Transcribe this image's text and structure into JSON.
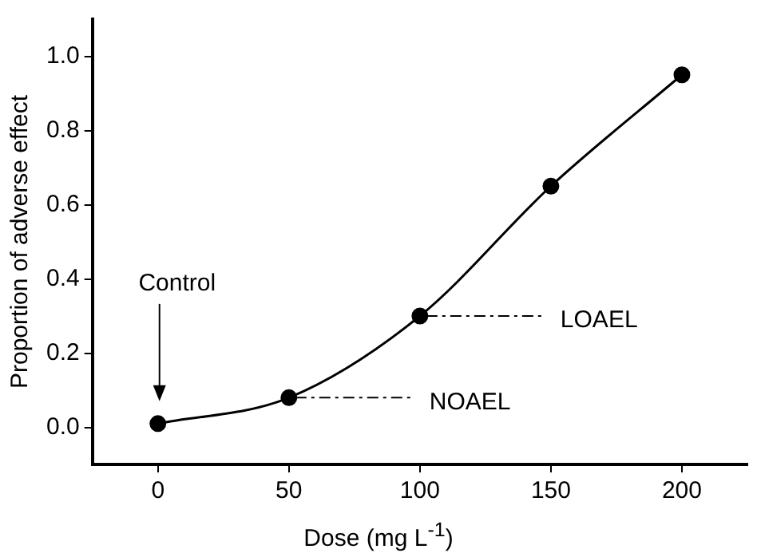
{
  "chart_data": {
    "type": "line",
    "xlabel": "Dose (mg L$^{-1}$)",
    "ylabel": "Proportion of adverse effect",
    "x": [
      0,
      50,
      100,
      150,
      200
    ],
    "series": [
      {
        "color": "#000000",
        "values": [
          0.01,
          0.08,
          0.3,
          0.65,
          0.95
        ]
      }
    ],
    "xlim": [
      -25,
      225
    ],
    "xticks": [
      0,
      50,
      100,
      150,
      200
    ],
    "ylim": [
      -0.1,
      1.1
    ],
    "yticks": [
      {
        "value": 0,
        "label": "0.0"
      },
      {
        "value": 0.2,
        "label": "0.2"
      },
      {
        "value": 0.4,
        "label": "0.4"
      },
      {
        "value": 0.6,
        "label": "0.6"
      },
      {
        "value": 0.8,
        "label": "0.8"
      },
      {
        "value": 1,
        "label": "1.0"
      }
    ],
    "annotations": [
      "Control",
      "NOAEL",
      "LOAEL"
    ],
    "marker": "circle",
    "grid": false,
    "legend": false
  }
}
